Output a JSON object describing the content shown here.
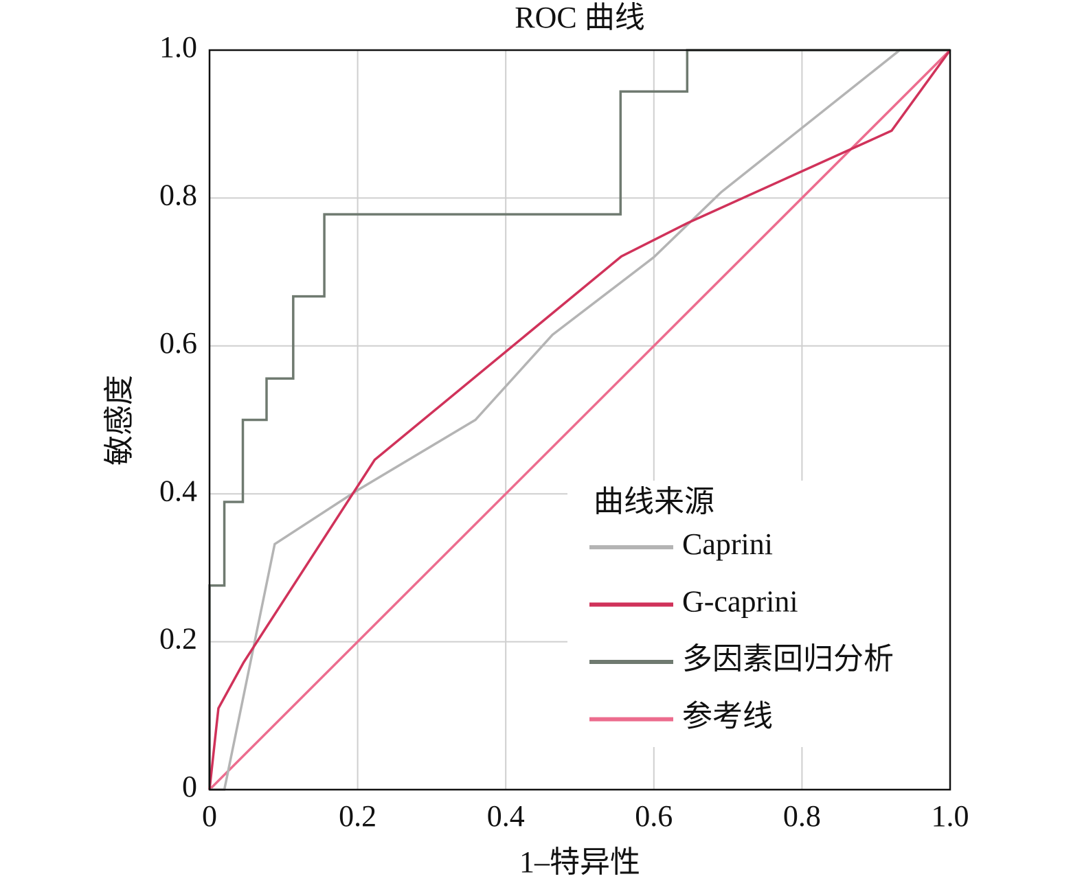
{
  "chart_data": {
    "type": "line",
    "title": "ROC 曲线",
    "x_label": "1–特异性",
    "y_label": "敏感度",
    "xlim": [
      0,
      1
    ],
    "ylim": [
      0,
      1
    ],
    "xticks": [
      0,
      0.2,
      0.4,
      0.6,
      0.8,
      {
        "value": 1,
        "label": "1.0"
      }
    ],
    "yticks": [
      0,
      0.2,
      0.4,
      0.6,
      0.8,
      {
        "value": 1,
        "label": "1.0"
      }
    ],
    "grid": true,
    "legend_title": "曲线来源",
    "legend_position": "lower right",
    "series": [
      {
        "name": "Caprini",
        "color": "#b4b4b4",
        "x": [
          0,
          0.02,
          0.088,
          0.2,
          0.359,
          0.463,
          0.6,
          0.691,
          0.932,
          1
        ],
        "values": [
          0,
          0,
          0.332,
          0.405,
          0.5,
          0.615,
          0.72,
          0.808,
          1,
          1
        ]
      },
      {
        "name": "G-caprini",
        "color": "#d0325a",
        "x": [
          0,
          0.012,
          0.046,
          0.223,
          0.556,
          0.645,
          0.921,
          1
        ],
        "values": [
          0,
          0.11,
          0.172,
          0.446,
          0.721,
          0.766,
          0.891,
          1
        ]
      },
      {
        "name": "多因素回归分析",
        "color": "#6f7a70",
        "x": [
          0,
          0,
          0.02,
          0.02,
          0.045,
          0.045,
          0.077,
          0.077,
          0.113,
          0.113,
          0.155,
          0.155,
          0.555,
          0.555,
          0.645,
          0.645,
          1
        ],
        "values": [
          0,
          0.276,
          0.276,
          0.389,
          0.389,
          0.5,
          0.5,
          0.556,
          0.556,
          0.667,
          0.667,
          0.778,
          0.778,
          0.944,
          0.944,
          1,
          1
        ]
      },
      {
        "name": "参考线",
        "color": "#ec6c8e",
        "x": [
          0,
          1
        ],
        "values": [
          0,
          1
        ]
      }
    ]
  }
}
